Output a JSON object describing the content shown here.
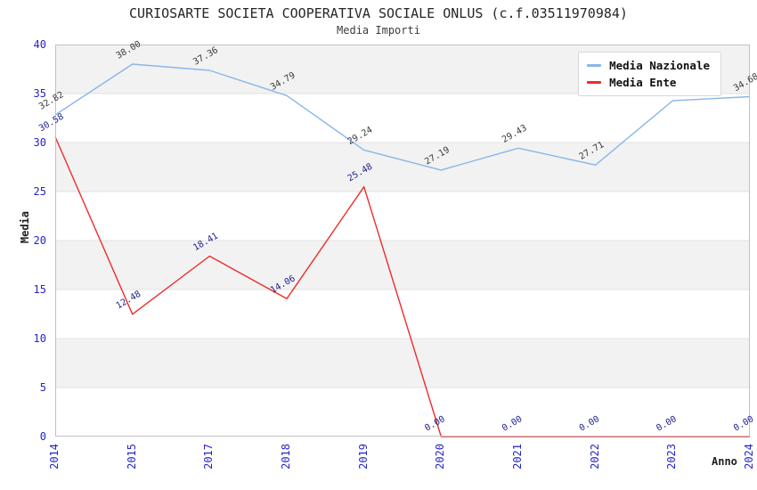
{
  "title": "CURIOSARTE SOCIETA COOPERATIVA SOCIALE ONLUS (c.f.03511970984)",
  "subtitle": "Media Importi",
  "colors": {
    "band": "#f2f2f2",
    "grid": "#e2e2e2",
    "plot_border": "#c1c1c1",
    "tick_label": "#2424cc",
    "national_line": "#89b7e6",
    "ente_line": "#ee2c2c",
    "national_value_label": "#3a3a3a",
    "ente_value_label": "#20208f"
  },
  "legend": {
    "items": [
      {
        "label": "Media Nazionale",
        "color": "#89b7e6"
      },
      {
        "label": "Media Ente",
        "color": "#ee2c2c"
      }
    ]
  },
  "chart_data": {
    "type": "line",
    "title": "CURIOSARTE SOCIETA COOPERATIVA SOCIALE ONLUS (c.f.03511970984)",
    "subtitle": "Media Importi",
    "xlabel": "Anno",
    "ylabel": "Media",
    "ylim": [
      0,
      40
    ],
    "yticks": [
      0,
      5,
      10,
      15,
      20,
      25,
      30,
      35,
      40
    ],
    "grid": "horizontal gridlines with alternating shaded bands every 5 units",
    "legend_position": "upper right",
    "categories": [
      "2014",
      "2015",
      "2017",
      "2018",
      "2019",
      "2020",
      "2021",
      "2022",
      "2023",
      "2024"
    ],
    "series": [
      {
        "name": "Media Nazionale",
        "color": "#89b7e6",
        "label_color": "#3a3a3a",
        "values": [
          32.82,
          38.0,
          37.36,
          34.79,
          29.24,
          27.19,
          29.43,
          27.71,
          34.27,
          34.68
        ],
        "point_labels": [
          "32.82",
          "38.00",
          "37.36",
          "34.79",
          "29.24",
          "27.19",
          "29.43",
          "27.71",
          "34.27",
          "34.68"
        ]
      },
      {
        "name": "Media Ente",
        "color": "#ee2c2c",
        "label_color": "#20208f",
        "values": [
          30.58,
          12.48,
          18.41,
          14.06,
          25.48,
          0.0,
          0.0,
          0.0,
          0.0,
          0.0
        ],
        "point_labels": [
          "30.58",
          "12.48",
          "18.41",
          "14.06",
          "25.48",
          "0.00",
          "0.00",
          "0.00",
          "0.00",
          "0.00"
        ]
      }
    ]
  }
}
